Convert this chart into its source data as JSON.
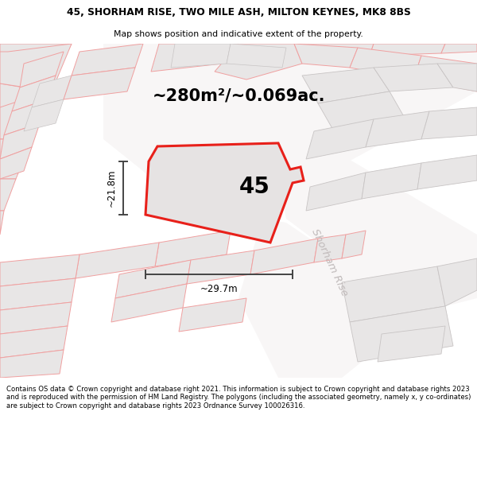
{
  "title_line1": "45, SHORHAM RISE, TWO MILE ASH, MILTON KEYNES, MK8 8BS",
  "title_line2": "Map shows position and indicative extent of the property.",
  "area_text": "~280m²/~0.069ac.",
  "house_number": "45",
  "dim_horizontal": "~29.7m",
  "dim_vertical": "~21.8m",
  "road_label_1": "Shorham Rise",
  "road_label_2": "Shorham Rise",
  "footer_text": "Contains OS data © Crown copyright and database right 2021. This information is subject to Crown copyright and database rights 2023 and is reproduced with the permission of HM Land Registry. The polygons (including the associated geometry, namely x, y co-ordinates) are subject to Crown copyright and database rights 2023 Ordnance Survey 100026316.",
  "map_bg": "#f5f3f3",
  "parcel_fill": "#e8e6e6",
  "parcel_edge_gray": "#c8c4c4",
  "parcel_edge_pink": "#f0a0a0",
  "red_outline": "#e8201a",
  "gray_line": "#444444",
  "road_text_color": "#c0baba",
  "title_bg": "#ffffff",
  "footer_bg": "#ffffff"
}
